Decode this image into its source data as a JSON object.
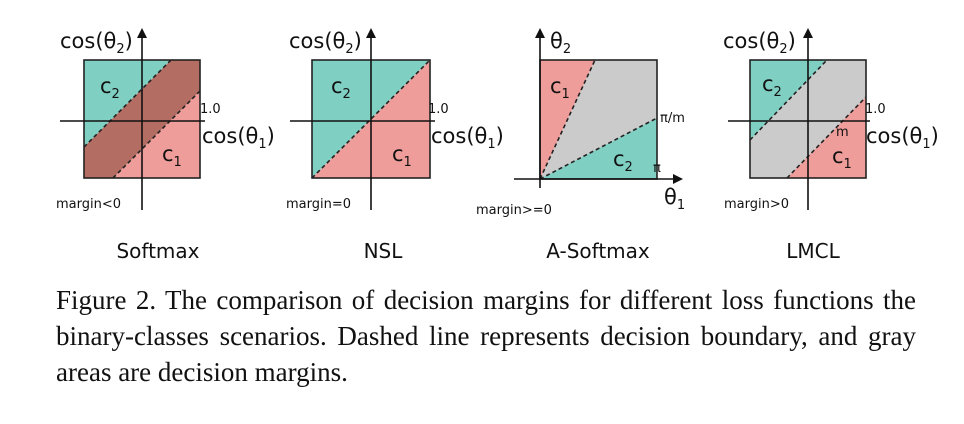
{
  "colors": {
    "teal": "#7fcfc3",
    "pink": "#ef9d9a",
    "brown": "#b36d63",
    "gray": "#cbcbcb",
    "outline": "#222222"
  },
  "panels": [
    {
      "id": "softmax",
      "y_axis_label": "cos(θ",
      "y_axis_sub": "2",
      "x_axis_label": "cos(θ",
      "x_axis_sub": "1",
      "tick_label": "1.0",
      "class_top_label": "c",
      "class_top_sub": "2",
      "class_bottom_label": "c",
      "class_bottom_sub": "1",
      "margin_label": "margin<0",
      "title": "Softmax"
    },
    {
      "id": "nsl",
      "y_axis_label": "cos(θ",
      "y_axis_sub": "2",
      "x_axis_label": "cos(θ",
      "x_axis_sub": "1",
      "tick_label": "1.0",
      "class_top_label": "c",
      "class_top_sub": "2",
      "class_bottom_label": "c",
      "class_bottom_sub": "1",
      "margin_label": "margin=0",
      "title": "NSL"
    },
    {
      "id": "a-softmax",
      "y_axis_label": "θ",
      "y_axis_sub": "2",
      "x_axis_label": "θ",
      "x_axis_sub": "1",
      "tick_pi_m": "π/m",
      "tick_pi": "π",
      "class_top_label": "c",
      "class_top_sub": "1",
      "class_bottom_label": "c",
      "class_bottom_sub": "2",
      "margin_label": "margin>=0",
      "title": "A-Softmax"
    },
    {
      "id": "lmcl",
      "y_axis_label": "cos(θ",
      "y_axis_sub": "2",
      "x_axis_label": "cos(θ",
      "x_axis_sub": "1",
      "tick_label": "1.0",
      "m_label": "m",
      "class_top_label": "c",
      "class_top_sub": "2",
      "class_bottom_label": "c",
      "class_bottom_sub": "1",
      "margin_label": "margin>0",
      "title": "LMCL"
    }
  ],
  "caption": "Figure 2. The comparison of decision margins for different loss functions the binary-classes scenarios. Dashed line represents decision boundary, and gray areas are decision margins."
}
